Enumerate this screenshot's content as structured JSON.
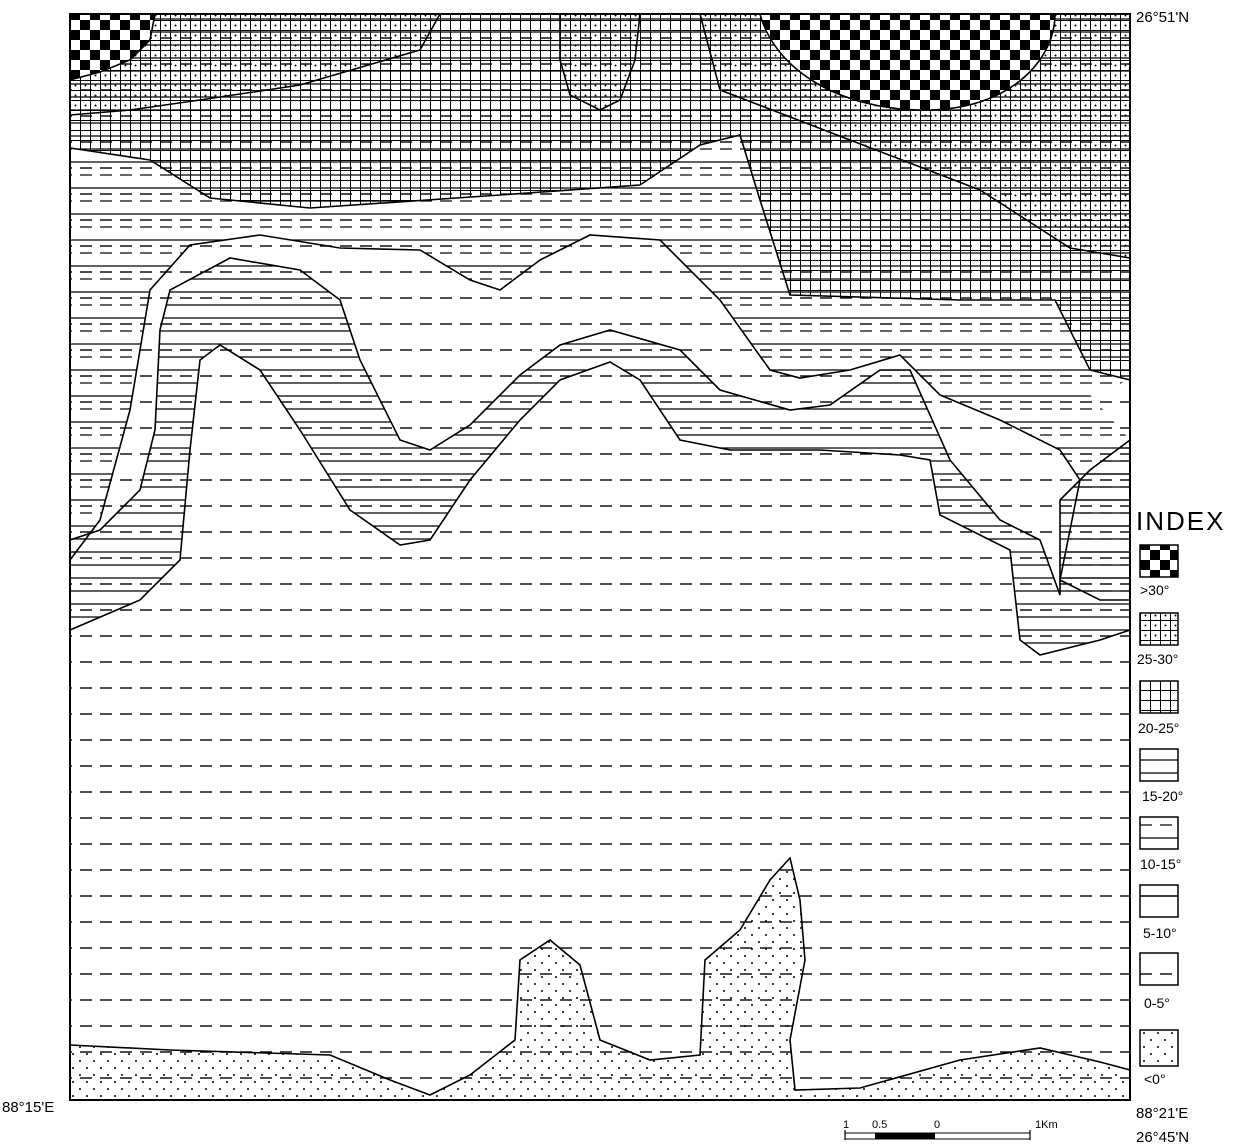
{
  "map": {
    "coordinates": {
      "top_right": "26°51'N",
      "bottom_left": "88°15'E",
      "bottom_right_lon": "88°21'E",
      "bottom_right_lat": "26°45'N"
    },
    "scale_bar": {
      "ticks": [
        "1",
        "0.5",
        "0",
        "1Km"
      ]
    }
  },
  "legend": {
    "title": "INDEX",
    "items": [
      {
        "label": ">30°",
        "pattern": "checker"
      },
      {
        "label": "25-30°",
        "pattern": "grid-dots"
      },
      {
        "label": "20-25°",
        "pattern": "grid"
      },
      {
        "label": "15-20°",
        "pattern": "hlines"
      },
      {
        "label": "10-15°",
        "pattern": "hlines-dashed"
      },
      {
        "label": "5-10°",
        "pattern": "hlines-sparse"
      },
      {
        "label": "0-5°",
        "pattern": "dashed"
      },
      {
        "label": "<0°",
        "pattern": "dots"
      }
    ]
  }
}
